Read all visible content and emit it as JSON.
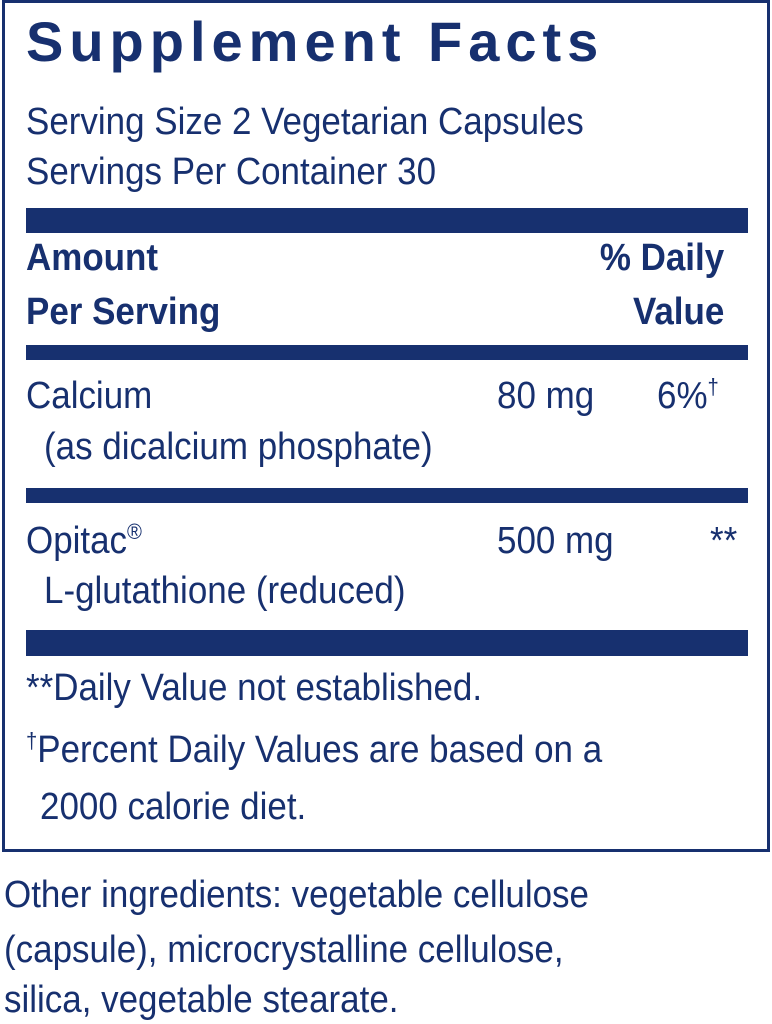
{
  "title": "Supplement Facts",
  "serving_size": "Serving Size 2 Vegetarian Capsules",
  "servings_per_container": "Servings Per Container 30",
  "header": {
    "amount": [
      "Amount",
      "Per Serving"
    ],
    "daily_value": [
      "% Daily",
      "Value"
    ]
  },
  "rows": [
    {
      "name": "Calcium",
      "sub": "(as dicalcium phosphate)",
      "amount": "80 mg",
      "daily_value": "6%",
      "daily_value_mark": "†"
    },
    {
      "name": "Opitac",
      "name_mark": "®",
      "sub": "L-glutathione (reduced)",
      "amount": "500 mg",
      "daily_value": "**"
    }
  ],
  "footnotes": [
    "**Daily Value not established.",
    {
      "mark": "†",
      "lines": [
        "Percent Daily Values are based on a",
        "2000 calorie diet."
      ]
    }
  ],
  "other_ingredients": [
    "Other ingredients: vegetable cellulose",
    "(capsule), microcrystalline cellulose,",
    "silica, vegetable stearate."
  ]
}
